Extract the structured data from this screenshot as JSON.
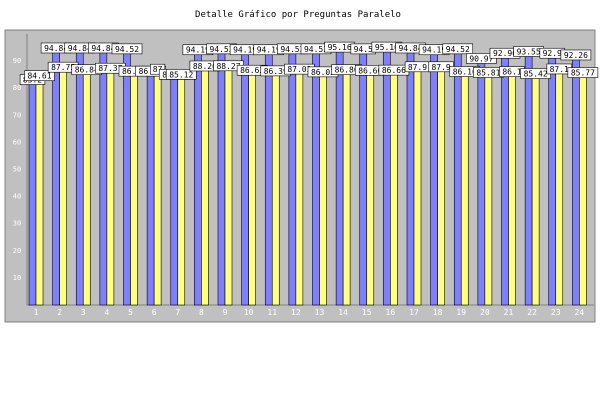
{
  "chart_data": {
    "type": "bar",
    "title": "Detalle Gráfico por Preguntas Paralelo",
    "xlabel": "",
    "ylabel": "",
    "ylim": [
      0,
      100
    ],
    "yticks": [
      10,
      20,
      30,
      40,
      50,
      60,
      70,
      80,
      90
    ],
    "grid": false,
    "legend": "none",
    "categories": [
      "1",
      "2",
      "3",
      "4",
      "5",
      "6",
      "7",
      "8",
      "9",
      "10",
      "11",
      "12",
      "13",
      "14",
      "15",
      "16",
      "17",
      "18",
      "19",
      "20",
      "21",
      "22",
      "23",
      "24"
    ],
    "series": [
      {
        "color": "#8080ff",
        "values": [
          83.2,
          94.84,
          94.84,
          94.84,
          94.52,
          86.29,
          85.12,
          94.19,
          94.52,
          94.19,
          94.19,
          94.52,
          94.52,
          95.16,
          94.5,
          95.16,
          94.84,
          94.19,
          94.52,
          90.97,
          92.9,
          93.55,
          92.9,
          92.26
        ],
        "labels": [
          "83.2",
          "94.84",
          "94.84",
          "94.84",
          "94.52",
          "86.29",
          "85.12",
          "94.19",
          "94.52",
          "94.19",
          "94.19",
          "94.52",
          "94.52",
          "95.16",
          "94.5",
          "95.16",
          "94.84",
          "94.19",
          "94.52",
          "90.97",
          "92.90",
          "93.55",
          "92.9",
          "92.26"
        ]
      },
      {
        "color": "#ffff80",
        "values": [
          84.61,
          87.75,
          86.84,
          87.37,
          86.29,
          87,
          85.12,
          88.2,
          88.27,
          86.63,
          86.39,
          87.03,
          86.03,
          86.86,
          86.6,
          86.66,
          87.9,
          87.9,
          86.16,
          85.81,
          86.1,
          85.42,
          87.1,
          85.77
        ],
        "labels": [
          "84.61",
          "87.75",
          "86.84",
          "87.37",
          "86.29",
          "87",
          "85.12",
          "88.20",
          "88.27",
          "86.63",
          "86.39",
          "87.03",
          "86.03",
          "86.86",
          "86.60",
          "86.66",
          "87.9",
          "87.9",
          "86.16",
          "85.81",
          "86.1",
          "85.42",
          "87.1",
          "85.77"
        ]
      }
    ]
  }
}
